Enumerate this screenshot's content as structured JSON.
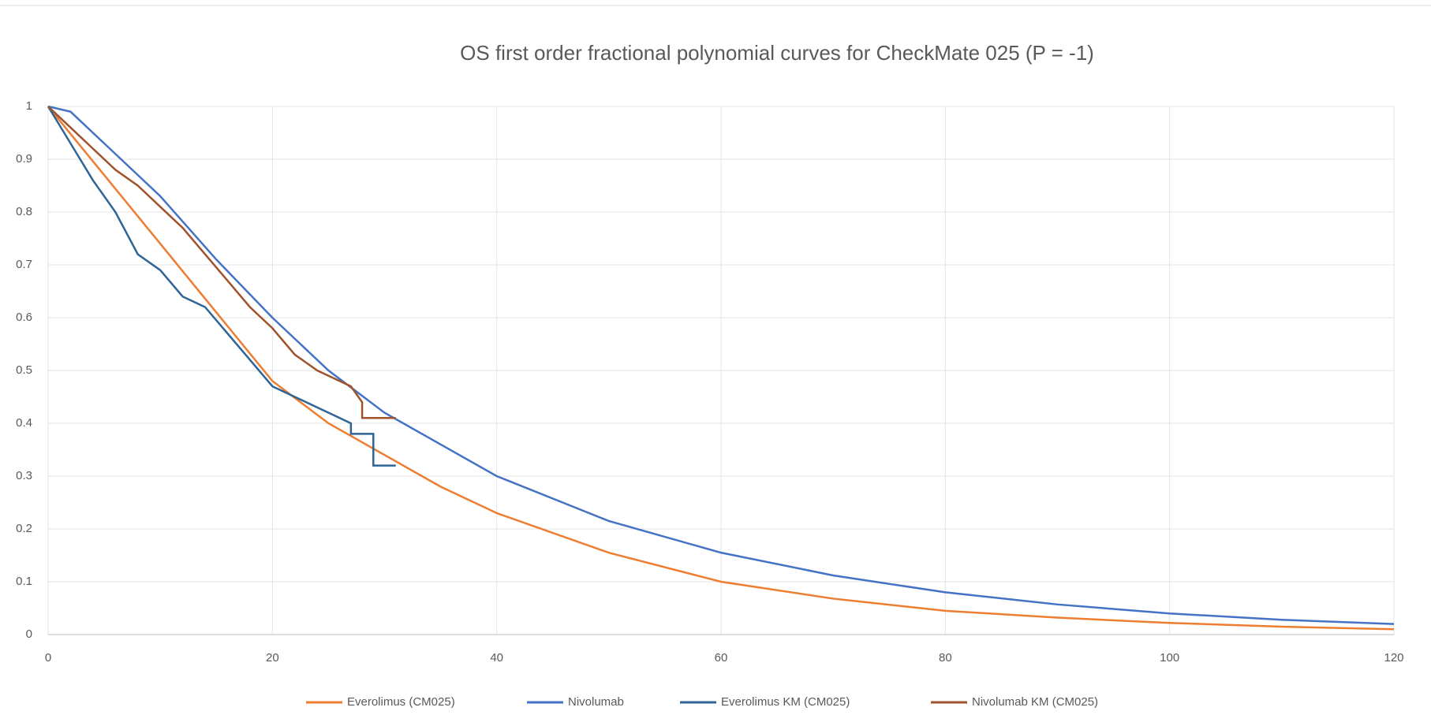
{
  "chart_data": {
    "type": "line",
    "title": "OS first order fractional polynomial curves for CheckMate 025 (P = -1)",
    "xlim": [
      0,
      120
    ],
    "xticks": [
      0,
      20,
      40,
      60,
      80,
      100,
      120
    ],
    "ylim": [
      0,
      1
    ],
    "yticks": [
      0,
      0.1,
      0.2,
      0.3,
      0.4,
      0.5,
      0.6,
      0.7,
      0.8,
      0.9,
      1
    ],
    "grid": true,
    "legend": "bottom",
    "series": [
      {
        "name": "Everolimus (CM025)",
        "color": "#ed7d31",
        "x": [
          0,
          5,
          10,
          15,
          20,
          25,
          30,
          35,
          40,
          50,
          60,
          70,
          80,
          90,
          100,
          110,
          120
        ],
        "values": [
          1,
          0.87,
          0.74,
          0.61,
          0.48,
          0.4,
          0.34,
          0.28,
          0.23,
          0.155,
          0.1,
          0.068,
          0.045,
          0.032,
          0.022,
          0.015,
          0.01
        ]
      },
      {
        "name": "Nivolumab",
        "color": "#4472c4",
        "x": [
          0,
          2,
          5,
          10,
          15,
          20,
          25,
          30,
          35,
          40,
          50,
          60,
          70,
          80,
          90,
          100,
          110,
          120
        ],
        "values": [
          1,
          0.99,
          0.93,
          0.83,
          0.71,
          0.6,
          0.5,
          0.42,
          0.36,
          0.3,
          0.215,
          0.155,
          0.112,
          0.08,
          0.057,
          0.04,
          0.028,
          0.02
        ]
      },
      {
        "name": "Everolimus KM (CM025)",
        "color": "#2e6496",
        "x": [
          0,
          2,
          4,
          6,
          8,
          10,
          12,
          14,
          16,
          18,
          20,
          22,
          24,
          26,
          27,
          27,
          29,
          29,
          31
        ],
        "values": [
          1,
          0.93,
          0.86,
          0.8,
          0.72,
          0.69,
          0.64,
          0.62,
          0.57,
          0.52,
          0.47,
          0.45,
          0.43,
          0.41,
          0.4,
          0.38,
          0.38,
          0.32,
          0.32
        ]
      },
      {
        "name": "Nivolumab KM (CM025)",
        "color": "#a0522d",
        "x": [
          0,
          2,
          4,
          6,
          8,
          10,
          12,
          14,
          16,
          18,
          20,
          22,
          24,
          26,
          27,
          28,
          28,
          31
        ],
        "values": [
          1,
          0.96,
          0.92,
          0.88,
          0.85,
          0.81,
          0.77,
          0.72,
          0.67,
          0.62,
          0.58,
          0.53,
          0.5,
          0.48,
          0.47,
          0.44,
          0.41,
          0.41
        ]
      }
    ]
  }
}
